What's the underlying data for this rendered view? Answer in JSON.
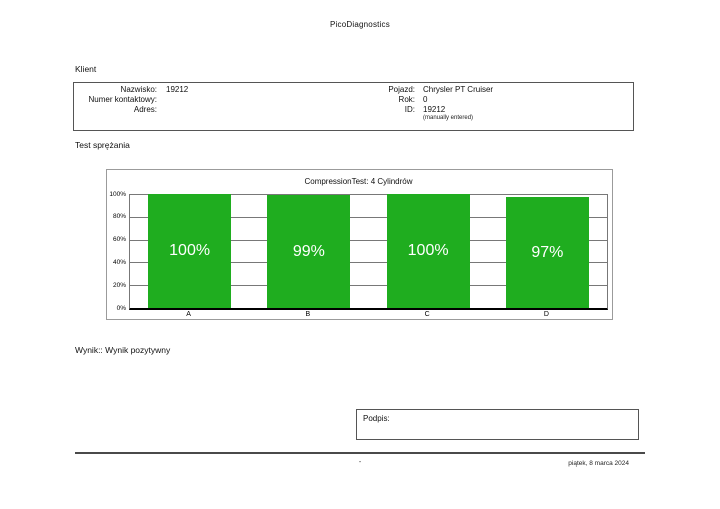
{
  "page": {
    "title": "PicoDiagnostics"
  },
  "client": {
    "section_label": "Klient",
    "left": [
      {
        "label": "Nazwisko:",
        "value": "19212"
      },
      {
        "label": "Numer kontaktowy:",
        "value": ""
      },
      {
        "label": "Adres:",
        "value": ""
      }
    ],
    "right": [
      {
        "label": "Pojazd:",
        "value": "Chrysler PT Cruiser"
      },
      {
        "label": "Rok:",
        "value": "0"
      },
      {
        "label": "ID:",
        "value": "19212"
      }
    ],
    "note": "(manually entered)"
  },
  "test_section": {
    "section_label": "Test sprężania"
  },
  "chart_data": {
    "type": "bar",
    "title": "CompressionTest: 4 Cylindrów",
    "categories": [
      "A",
      "B",
      "C",
      "D"
    ],
    "values": [
      100,
      99,
      100,
      97
    ],
    "value_labels": [
      "100%",
      "99%",
      "100%",
      "97%"
    ],
    "y_ticks": [
      100,
      80,
      60,
      40,
      20,
      0
    ],
    "y_tick_labels": [
      "100%",
      "80%",
      "60%",
      "40%",
      "20%",
      "0%"
    ],
    "ylim": [
      0,
      100
    ],
    "grid": true,
    "legend": "none",
    "bar_color": "#1fad1f",
    "bar_text_color": "#ffffff"
  },
  "result": {
    "text": "Wynik:: Wynik pozytywny"
  },
  "signature": {
    "label": "Podpis:"
  },
  "footer": {
    "center": "-",
    "date": "piątek, 8 marca 2024"
  }
}
